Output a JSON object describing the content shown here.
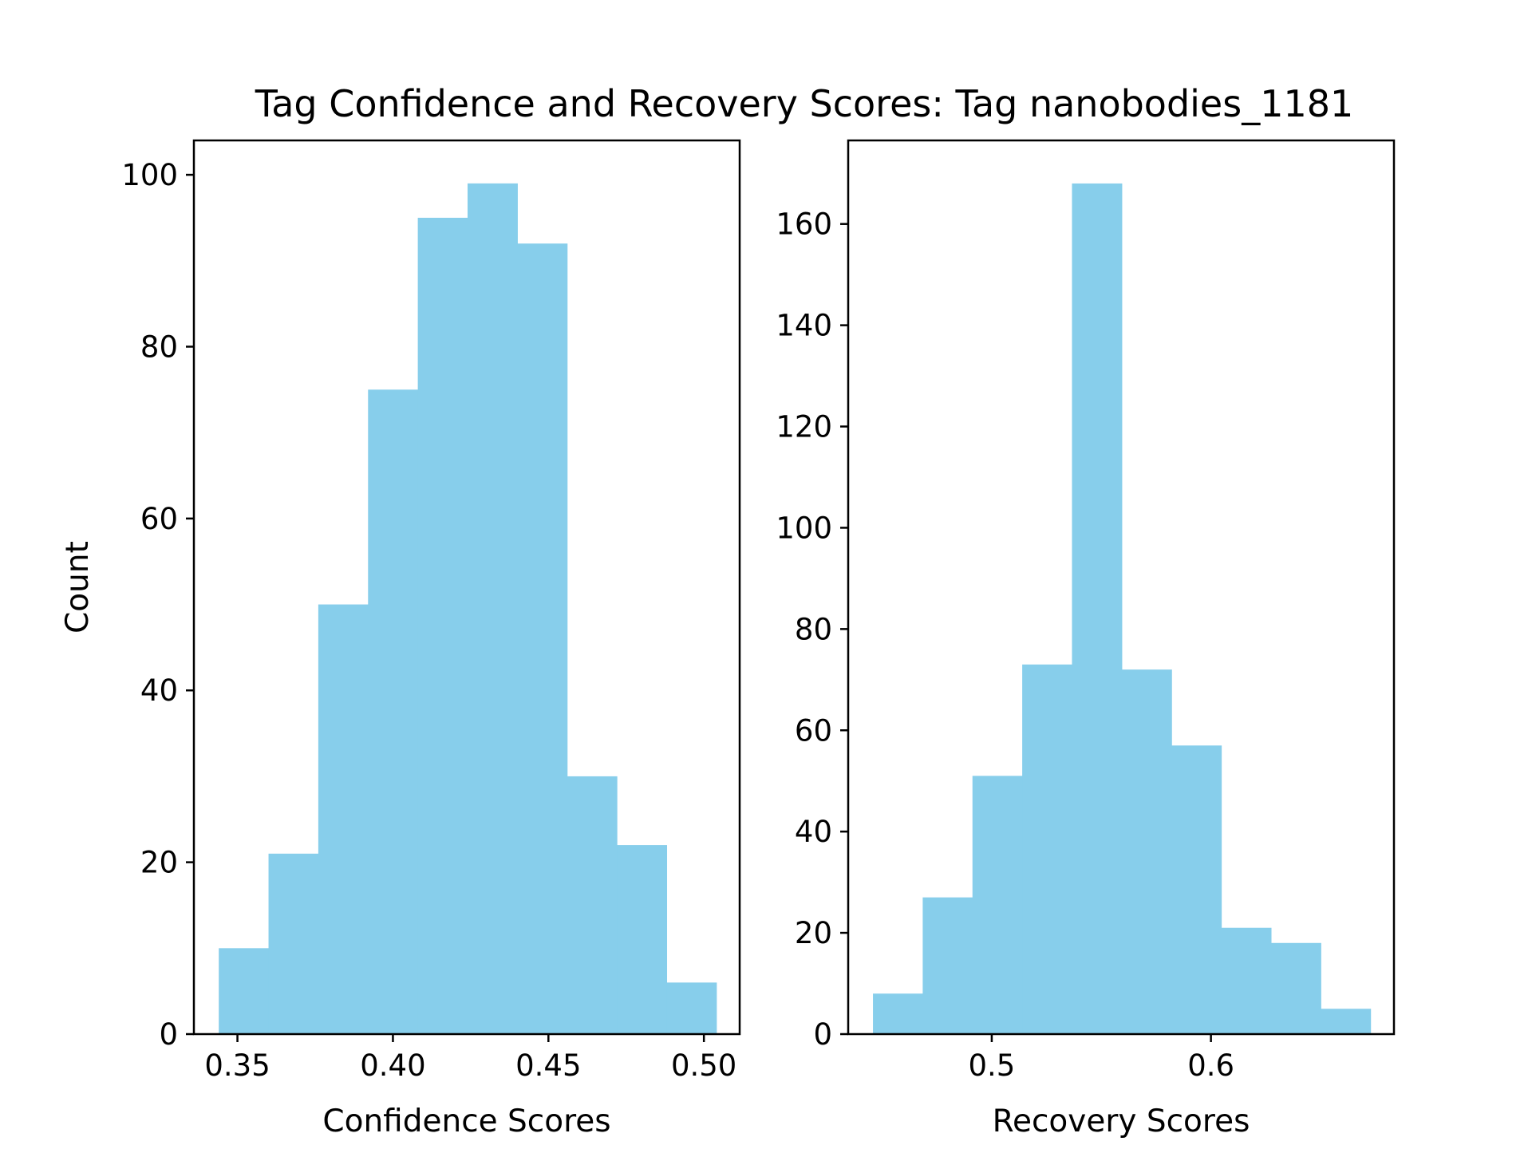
{
  "title": "Tag Confidence and Recovery Scores: Tag nanobodies_1181",
  "bar_color": "#87CEEB",
  "chart_data": [
    {
      "type": "bar",
      "subtype": "histogram",
      "xlabel": "Confidence Scores",
      "ylabel": "Count",
      "xlim": [
        0.336,
        0.5115
      ],
      "ylim": [
        0,
        104
      ],
      "xticks": [
        0.35,
        0.4,
        0.45,
        0.5
      ],
      "xtick_labels": [
        "0.35",
        "0.40",
        "0.45",
        "0.50"
      ],
      "yticks": [
        0,
        20,
        40,
        60,
        80,
        100
      ],
      "ytick_labels": [
        "0",
        "20",
        "40",
        "60",
        "80",
        "100"
      ],
      "bin_edges": [
        0.344,
        0.36,
        0.376,
        0.392,
        0.408,
        0.424,
        0.44,
        0.456,
        0.472,
        0.488,
        0.504
      ],
      "values": [
        10,
        21,
        50,
        75,
        95,
        99,
        92,
        30,
        22,
        6
      ],
      "grid": false,
      "legend": "none"
    },
    {
      "type": "bar",
      "subtype": "histogram",
      "xlabel": "Recovery Scores",
      "ylabel": "",
      "xlim": [
        0.4345,
        0.6835
      ],
      "ylim": [
        0,
        176.5
      ],
      "xticks": [
        0.5,
        0.6
      ],
      "xtick_labels": [
        "0.5",
        "0.6"
      ],
      "yticks": [
        0,
        20,
        40,
        60,
        80,
        100,
        120,
        140,
        160
      ],
      "ytick_labels": [
        "0",
        "20",
        "40",
        "60",
        "80",
        "100",
        "120",
        "140",
        "160"
      ],
      "bin_edges": [
        0.4458,
        0.4685,
        0.4912,
        0.5139,
        0.5366,
        0.5593,
        0.582,
        0.6047,
        0.6274,
        0.6501,
        0.6728
      ],
      "values": [
        8,
        27,
        51,
        73,
        168,
        72,
        57,
        21,
        18,
        5
      ],
      "grid": false,
      "legend": "none"
    }
  ]
}
